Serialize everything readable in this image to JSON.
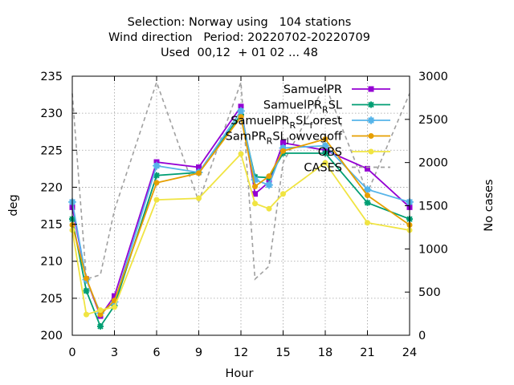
{
  "chart_data": {
    "type": "line",
    "title_lines": [
      "Selection: Norway using   104 stations",
      "Wind direction   Period: 20220702-20220709",
      "Used  00,12  + 01 02 ... 48"
    ],
    "xlabel": "Hour",
    "ylabel": "deg",
    "y2label": "No cases",
    "xlim": [
      0,
      24
    ],
    "ylim": [
      200,
      235
    ],
    "y2lim": [
      0,
      3000
    ],
    "xticks": [
      0,
      3,
      6,
      9,
      12,
      15,
      18,
      21,
      24
    ],
    "yticks": [
      200,
      205,
      210,
      215,
      220,
      225,
      230,
      235
    ],
    "y2ticks": [
      0,
      500,
      1000,
      1500,
      2000,
      2500,
      3000
    ],
    "grid": true,
    "legend_position": "top-right",
    "series": [
      {
        "name": "SamuelPR",
        "legend_parts": [
          {
            "t": "SamuelPR",
            "sub": false
          }
        ],
        "color": "#9400d3",
        "marker": "square",
        "axis": "y",
        "x": [
          0,
          1,
          2,
          3,
          6,
          9,
          12,
          13,
          14,
          15,
          18,
          21,
          24
        ],
        "y": [
          217.3,
          207.6,
          202.6,
          205.3,
          223.4,
          222.7,
          230.9,
          219.1,
          220.7,
          226.0,
          225.0,
          222.5,
          217.3
        ]
      },
      {
        "name": "SamuelPR_R SL",
        "legend_parts": [
          {
            "t": "SamuelPR",
            "sub": false
          },
          {
            "t": "R",
            "sub": true
          },
          {
            "t": "SL",
            "sub": false
          }
        ],
        "color": "#009e73",
        "marker": "star",
        "axis": "y",
        "x": [
          0,
          1,
          2,
          3,
          6,
          9,
          12,
          13,
          14,
          15,
          18,
          21,
          24
        ],
        "y": [
          215.7,
          206.0,
          201.2,
          204.0,
          221.6,
          222.0,
          229.8,
          221.4,
          221.3,
          224.6,
          224.6,
          217.9,
          215.7
        ]
      },
      {
        "name": "SamuelPR_R SL_f orest",
        "legend_parts": [
          {
            "t": "SamuelPR",
            "sub": false
          },
          {
            "t": "R",
            "sub": true
          },
          {
            "t": "SL",
            "sub": false
          },
          {
            "t": "f",
            "sub": true
          },
          {
            "t": "orest",
            "sub": false
          }
        ],
        "color": "#56b4e9",
        "marker": "box",
        "axis": "y",
        "x": [
          0,
          1,
          2,
          3,
          6,
          9,
          12,
          13,
          14,
          15,
          18,
          21,
          24
        ],
        "y": [
          218.0,
          207.5,
          203.0,
          204.5,
          222.9,
          222.0,
          230.3,
          221.0,
          220.3,
          225.3,
          225.6,
          219.7,
          218.0
        ]
      },
      {
        "name": "SamPR_R SL_l owvegoff",
        "legend_parts": [
          {
            "t": "SamPR",
            "sub": false
          },
          {
            "t": "R",
            "sub": true
          },
          {
            "t": "SL",
            "sub": false
          },
          {
            "t": "l",
            "sub": true
          },
          {
            "t": "owvegoff",
            "sub": false
          }
        ],
        "color": "#e69f00",
        "marker": "circle",
        "axis": "y",
        "x": [
          0,
          1,
          2,
          3,
          6,
          9,
          12,
          13,
          14,
          15,
          18,
          21,
          24
        ],
        "y": [
          214.9,
          207.7,
          202.8,
          204.7,
          220.6,
          221.9,
          229.5,
          220.1,
          221.5,
          224.9,
          226.5,
          218.9,
          214.9
        ]
      },
      {
        "name": "OBS",
        "legend_parts": [
          {
            "t": "OBS",
            "sub": false
          }
        ],
        "color": "#f0e442",
        "marker": "circle",
        "axis": "y",
        "x": [
          0,
          1,
          2,
          3,
          6,
          9,
          12,
          13,
          14,
          15,
          18,
          21,
          24
        ],
        "y": [
          214.2,
          202.8,
          203.4,
          203.8,
          218.3,
          218.5,
          224.5,
          217.8,
          217.1,
          219.1,
          223.3,
          215.2,
          214.2
        ]
      },
      {
        "name": "CASES",
        "legend_parts": [
          {
            "t": "CASES",
            "sub": false
          }
        ],
        "color": "#a0a0a0",
        "marker": "none",
        "dashed": true,
        "axis": "y2",
        "x": [
          0,
          1,
          2,
          3,
          6,
          9,
          12,
          13,
          14,
          15,
          18,
          21,
          24
        ],
        "y": [
          2800,
          650,
          700,
          1450,
          2930,
          1550,
          2930,
          650,
          800,
          2000,
          2900,
          1650,
          2800
        ]
      }
    ]
  }
}
